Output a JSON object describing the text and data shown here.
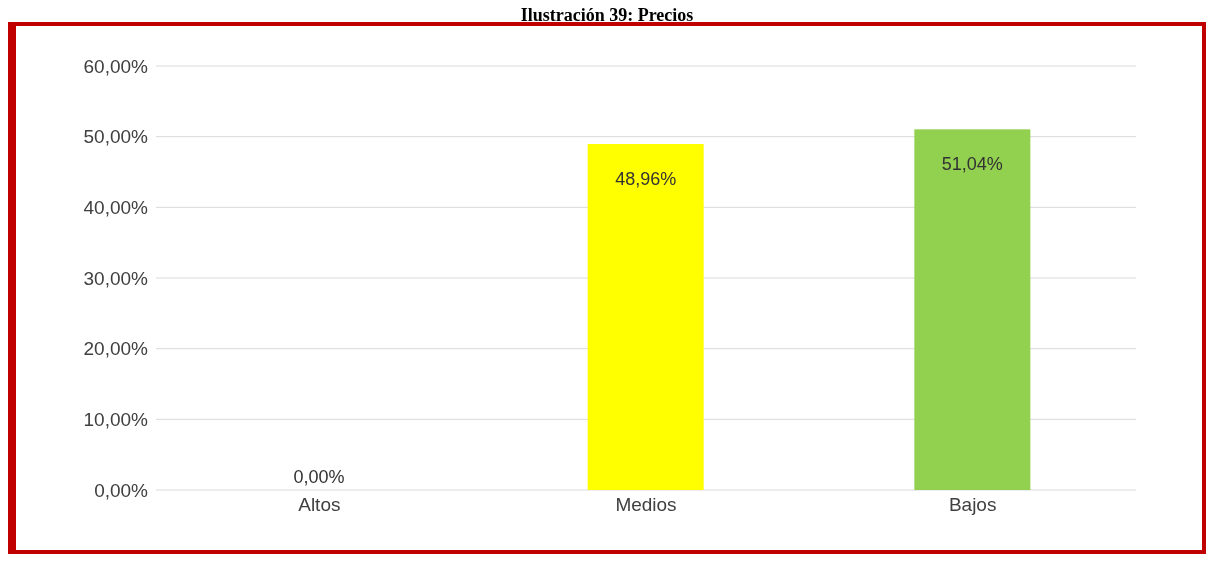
{
  "chart_data": {
    "type": "bar",
    "title": "Ilustración 39: Precios",
    "categories": [
      "Altos",
      "Medios",
      "Bajos"
    ],
    "values": [
      0,
      48.96,
      51.04
    ],
    "colors": [
      "#2f5597",
      "#ffff00",
      "#92d050"
    ],
    "value_labels": [
      "0,00%",
      "48,96%",
      "51,04%"
    ],
    "ylim": [
      0,
      60
    ],
    "yticks": [
      {
        "value": 0,
        "label": "0,00%"
      },
      {
        "value": 10,
        "label": "10,00%"
      },
      {
        "value": 20,
        "label": "20,00%"
      },
      {
        "value": 30,
        "label": "30,00%"
      },
      {
        "value": 40,
        "label": "40,00%"
      },
      {
        "value": 50,
        "label": "50,00%"
      },
      {
        "value": 60,
        "label": "60,00%"
      }
    ],
    "grid": "y",
    "legend": false
  }
}
